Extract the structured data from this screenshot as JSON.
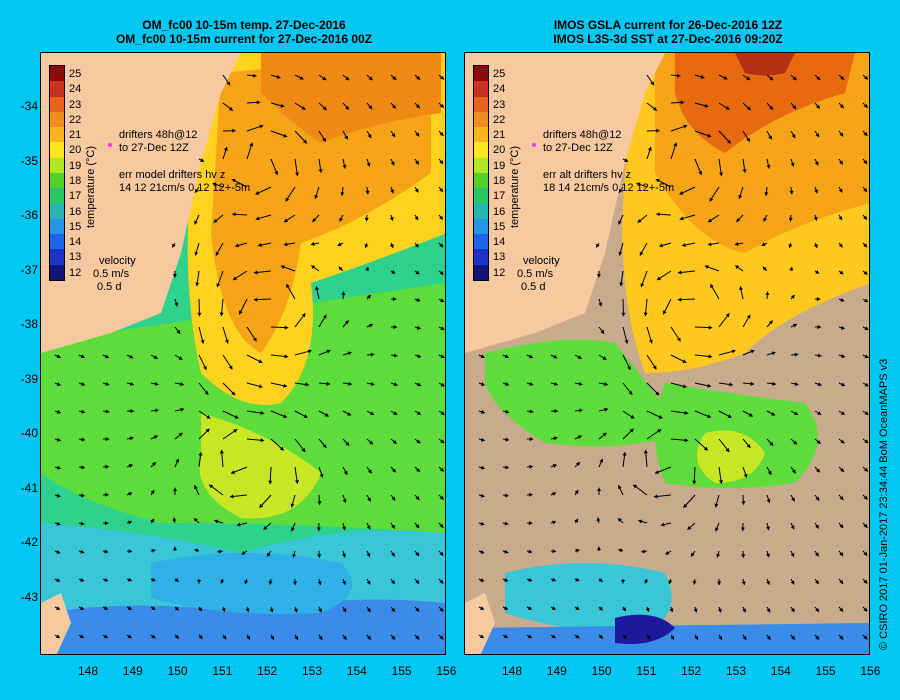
{
  "left_panel": {
    "title_line1": "OM_fc00 10-15m temp. 27-Dec-2016",
    "title_line2": "OM_fc00 10-15m current for 27-Dec-2016 00Z",
    "drifters_line1": "drifters 48h@12",
    "drifters_line2": "to 27-Dec 12Z",
    "err_line1": "err model drifters hv z",
    "err_line2": "14 12 21cm/s 0.12 12+-5m",
    "velocity_label": "velocity",
    "velocity_speed": "0.5 m/s",
    "velocity_time": "0.5 d"
  },
  "right_panel": {
    "title_line1": "IMOS GSLA current for 26-Dec-2016 12Z",
    "title_line2": "IMOS L3S-3d SST at 27-Dec-2016 09:20Z",
    "drifters_line1": "drifters 48h@12",
    "drifters_line2": "to 27-Dec 12Z",
    "err_line1": "err alt drifters hv z",
    "err_line2": "18 14 21cm/s 0.12 12+-5m",
    "velocity_label": "velocity",
    "velocity_speed": "0.5 m/s",
    "velocity_time": "0.5 d"
  },
  "colorbar": {
    "title": "temperature (°C)",
    "labels": [
      "25",
      "24",
      "23",
      "22",
      "21",
      "20",
      "19",
      "18",
      "17",
      "16",
      "15",
      "14",
      "13",
      "12"
    ]
  },
  "axes": {
    "lat_labels": [
      "-34",
      "-35",
      "-36",
      "-37",
      "-38",
      "-39",
      "-40",
      "-41",
      "-42",
      "-43"
    ],
    "lon_labels": [
      "148",
      "149",
      "150",
      "151",
      "152",
      "153",
      "154",
      "155",
      "156"
    ]
  },
  "credit": "© CSIRO 2017   01-Jan-2017 23:34:44 BoM OceanMAPS v3",
  "colors": {
    "background": "#00c8f0",
    "land": "#f7c9a0",
    "no_data": "#c8aa8c",
    "drifter": "#ff33ff"
  }
}
